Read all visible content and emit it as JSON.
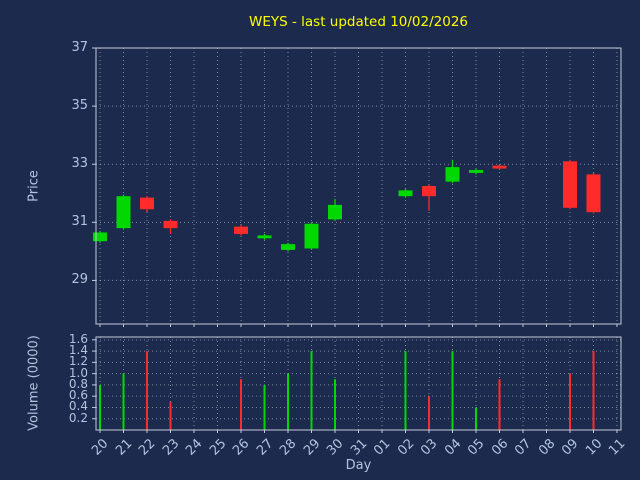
{
  "title": "WEYS - last updated 10/02/2026",
  "colors": {
    "background": "#1c2b4d",
    "title": "#ffff00",
    "axis_text": "#b0c4de",
    "frame": "#c3cbd9",
    "grid": "#ffffff",
    "up": "#00d800",
    "down": "#ff2a2a"
  },
  "chart_data": [
    {
      "type": "candlestick",
      "panel": "price",
      "title": "WEYS - last updated 10/02/2026",
      "xlabel": "Day",
      "ylabel": "Price",
      "ylim": [
        27.5,
        37
      ],
      "yticks": [
        29,
        31,
        33,
        35,
        37
      ],
      "grid": "dotted",
      "categories": [
        "20",
        "21",
        "22",
        "23",
        "24",
        "25",
        "26",
        "27",
        "28",
        "29",
        "30",
        "31",
        "01",
        "02",
        "03",
        "04",
        "05",
        "06",
        "07",
        "08",
        "09",
        "10",
        "11"
      ],
      "candles": [
        {
          "day": "20",
          "open": 30.35,
          "high": 30.7,
          "low": 30.3,
          "close": 30.65
        },
        {
          "day": "21",
          "open": 30.8,
          "high": 31.95,
          "low": 30.75,
          "close": 31.9
        },
        {
          "day": "22",
          "open": 31.85,
          "high": 31.9,
          "low": 31.35,
          "close": 31.45
        },
        {
          "day": "23",
          "open": 31.05,
          "high": 31.1,
          "low": 30.6,
          "close": 30.8
        },
        {
          "day": "26",
          "open": 30.85,
          "high": 30.9,
          "low": 30.55,
          "close": 30.6
        },
        {
          "day": "27",
          "open": 30.45,
          "high": 30.6,
          "low": 30.4,
          "close": 30.55
        },
        {
          "day": "28",
          "open": 30.05,
          "high": 30.3,
          "low": 30.0,
          "close": 30.25
        },
        {
          "day": "29",
          "open": 30.1,
          "high": 31.0,
          "low": 30.05,
          "close": 30.95
        },
        {
          "day": "30",
          "open": 31.1,
          "high": 31.8,
          "low": 31.05,
          "close": 31.6
        },
        {
          "day": "02",
          "open": 31.9,
          "high": 32.15,
          "low": 31.85,
          "close": 32.1
        },
        {
          "day": "03",
          "open": 32.25,
          "high": 32.3,
          "low": 31.4,
          "close": 31.9
        },
        {
          "day": "04",
          "open": 32.4,
          "high": 33.15,
          "low": 32.35,
          "close": 32.9
        },
        {
          "day": "05",
          "open": 32.7,
          "high": 32.85,
          "low": 32.65,
          "close": 32.8
        },
        {
          "day": "06",
          "open": 32.95,
          "high": 33.0,
          "low": 32.8,
          "close": 32.85
        },
        {
          "day": "09",
          "open": 33.1,
          "high": 33.15,
          "low": 31.45,
          "close": 31.5
        },
        {
          "day": "10",
          "open": 32.65,
          "high": 32.7,
          "low": 31.3,
          "close": 31.35
        }
      ]
    },
    {
      "type": "bar",
      "panel": "volume",
      "ylabel": "Volume (0000)",
      "ylim": [
        0,
        1.65
      ],
      "yticks": [
        0.2,
        0.4,
        0.6,
        0.8,
        1.0,
        1.2,
        1.4,
        1.6
      ],
      "grid": "dotted",
      "bars": [
        {
          "day": "20",
          "value": 0.8,
          "direction": "up"
        },
        {
          "day": "21",
          "value": 1.0,
          "direction": "up"
        },
        {
          "day": "22",
          "value": 1.4,
          "direction": "down"
        },
        {
          "day": "23",
          "value": 0.5,
          "direction": "down"
        },
        {
          "day": "26",
          "value": 0.9,
          "direction": "down"
        },
        {
          "day": "27",
          "value": 0.8,
          "direction": "up"
        },
        {
          "day": "28",
          "value": 1.0,
          "direction": "up"
        },
        {
          "day": "29",
          "value": 1.4,
          "direction": "up"
        },
        {
          "day": "30",
          "value": 0.9,
          "direction": "up"
        },
        {
          "day": "02",
          "value": 1.4,
          "direction": "up"
        },
        {
          "day": "03",
          "value": 0.6,
          "direction": "down"
        },
        {
          "day": "04",
          "value": 1.4,
          "direction": "up"
        },
        {
          "day": "05",
          "value": 0.4,
          "direction": "up"
        },
        {
          "day": "06",
          "value": 0.9,
          "direction": "down"
        },
        {
          "day": "09",
          "value": 1.0,
          "direction": "down"
        },
        {
          "day": "10",
          "value": 1.4,
          "direction": "down"
        }
      ]
    }
  ]
}
